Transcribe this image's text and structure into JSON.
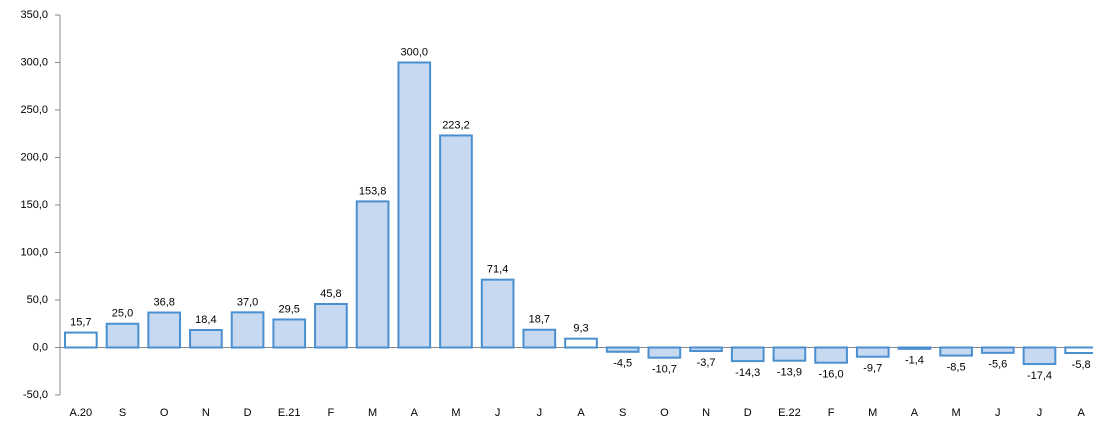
{
  "chart_data": {
    "type": "bar",
    "categories": [
      "A.20",
      "S",
      "O",
      "N",
      "D",
      "E.21",
      "F",
      "M",
      "A",
      "M",
      "J",
      "J",
      "A",
      "S",
      "O",
      "N",
      "D",
      "E.22",
      "F",
      "M",
      "A",
      "M",
      "J",
      "J",
      "A"
    ],
    "values": [
      15.7,
      25.0,
      36.8,
      18.4,
      37.0,
      29.5,
      45.8,
      153.8,
      300.0,
      223.2,
      71.4,
      18.7,
      9.3,
      -4.5,
      -10.7,
      -3.7,
      -14.3,
      -13.9,
      -16.0,
      -9.7,
      -1.4,
      -8.5,
      -5.6,
      -17.4,
      -5.8
    ],
    "value_labels": [
      "15,7",
      "25,0",
      "36,8",
      "18,4",
      "37,0",
      "29,5",
      "45,8",
      "153,8",
      "300,0",
      "223,2",
      "71,4",
      "18,7",
      "9,3",
      "-4,5",
      "-10,7",
      "-3,7",
      "-14,3",
      "-13,9",
      "-16,0",
      "-9,7",
      "-1,4",
      "-8,5",
      "-5,6",
      "-17,4",
      "-5,8"
    ],
    "colors": [
      "#ffffff",
      "#c6d9f1",
      "#c6d9f1",
      "#c6d9f1",
      "#c6d9f1",
      "#c6d9f1",
      "#c6d9f1",
      "#c6d9f1",
      "#c6d9f1",
      "#c6d9f1",
      "#c6d9f1",
      "#c6d9f1",
      "#ffffff",
      "#c6d9f1",
      "#c6d9f1",
      "#c6d9f1",
      "#c6d9f1",
      "#c6d9f1",
      "#c6d9f1",
      "#c6d9f1",
      "#c6d9f1",
      "#c6d9f1",
      "#c6d9f1",
      "#c6d9f1",
      "#ffffff"
    ],
    "edge_color": "#4a8fd0",
    "ylim": [
      -50,
      350
    ],
    "yticks": [
      {
        "value": -50,
        "label": "-50,0"
      },
      {
        "value": 0,
        "label": "0,0"
      },
      {
        "value": 50,
        "label": "50,0"
      },
      {
        "value": 100,
        "label": "100,0"
      },
      {
        "value": 150,
        "label": "150,0"
      },
      {
        "value": 200,
        "label": "200,0"
      },
      {
        "value": 250,
        "label": "250,0"
      },
      {
        "value": 300,
        "label": "300,0"
      },
      {
        "value": 350,
        "label": "350,0"
      }
    ],
    "grid": false
  }
}
